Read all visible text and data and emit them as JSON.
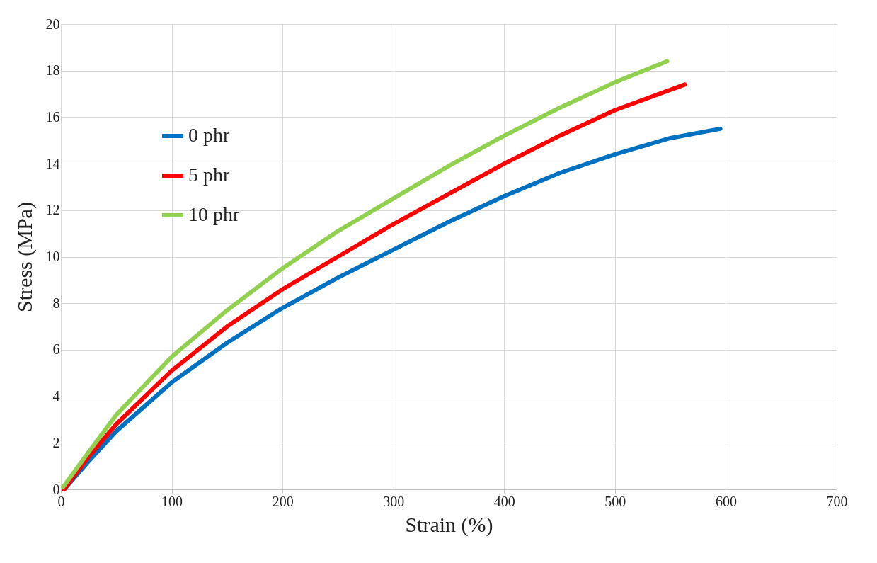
{
  "chart_data": {
    "type": "line",
    "xlabel": "Strain (%)",
    "ylabel": "Stress (MPa)",
    "xlim": [
      0,
      700
    ],
    "xticks": [
      0,
      100,
      200,
      300,
      400,
      500,
      600,
      700
    ],
    "ylim": [
      0,
      20
    ],
    "yticks": [
      0,
      2,
      4,
      6,
      8,
      10,
      12,
      14,
      16,
      18,
      20
    ],
    "grid": true,
    "legend": "top left",
    "marker": "none",
    "line_style": "solid",
    "series": [
      {
        "name": "0 phr",
        "color": "#0070c0",
        "x": [
          3,
          25,
          50,
          100,
          150,
          200,
          250,
          300,
          350,
          400,
          450,
          500,
          550,
          595
        ],
        "values": [
          0,
          1.2,
          2.5,
          4.6,
          6.3,
          7.8,
          9.1,
          10.3,
          11.5,
          12.6,
          13.6,
          14.4,
          15.1,
          15.5
        ]
      },
      {
        "name": "5 phr",
        "color": "#ff0000",
        "x": [
          3,
          25,
          50,
          100,
          150,
          200,
          250,
          300,
          350,
          400,
          450,
          500,
          563
        ],
        "values": [
          0,
          1.4,
          2.8,
          5.1,
          7.0,
          8.6,
          10.0,
          11.4,
          12.7,
          14.0,
          15.2,
          16.3,
          17.4
        ]
      },
      {
        "name": "10 phr",
        "color": "#92d050",
        "x": [
          2,
          25,
          50,
          100,
          150,
          200,
          250,
          300,
          350,
          400,
          450,
          500,
          547
        ],
        "values": [
          0.1,
          1.6,
          3.2,
          5.7,
          7.7,
          9.5,
          11.1,
          12.5,
          13.9,
          15.2,
          16.4,
          17.5,
          18.4
        ]
      }
    ]
  }
}
